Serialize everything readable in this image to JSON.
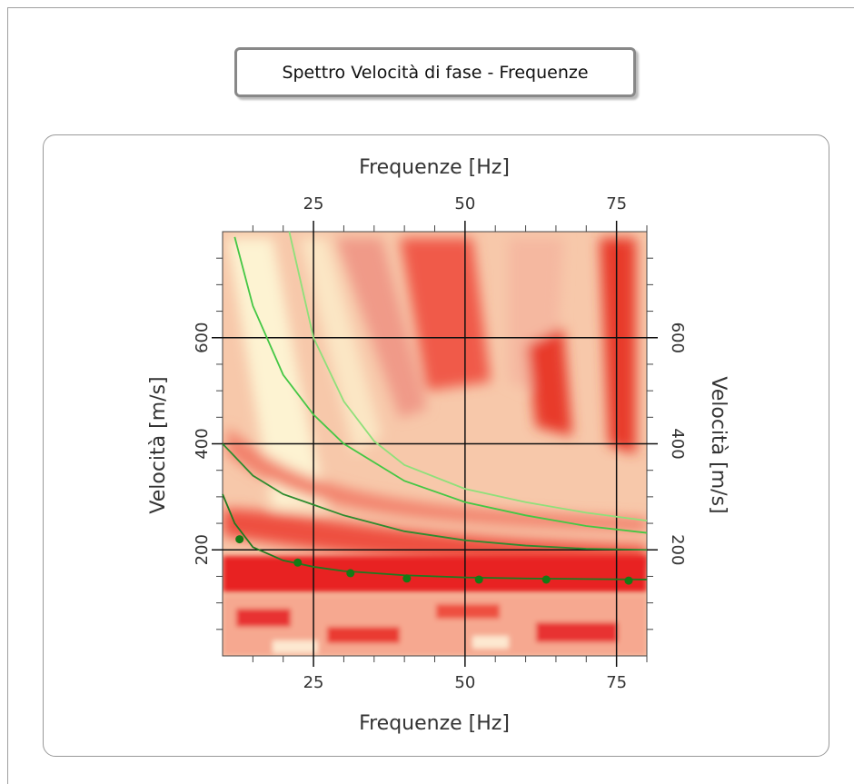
{
  "panel_title": "Spettro Velocità di fase - Frequenze",
  "chart_data": {
    "type": "line",
    "xlabel": "Frequenze [Hz]",
    "xlabel_top": "Frequenze [Hz]",
    "ylabel": "Velocità [m/s]",
    "ylabel_right": "Velocità [m/s]",
    "xlim": [
      10,
      80
    ],
    "ylim": [
      0,
      800
    ],
    "xticks": [
      25,
      50,
      75
    ],
    "yticks": [
      200,
      400,
      600
    ],
    "xminorticks": [
      15,
      20,
      30,
      35,
      40,
      45,
      55,
      60,
      65,
      70,
      80
    ],
    "yminorticks": [
      50,
      100,
      150,
      250,
      300,
      350,
      450,
      500,
      550,
      650,
      700,
      750
    ],
    "grid": true,
    "series": [
      {
        "color": "#1f7a1f",
        "x": [
          10,
          12,
          15,
          20,
          25,
          30,
          40,
          50,
          60,
          70,
          80
        ],
        "values": [
          305,
          250,
          205,
          180,
          168,
          160,
          152,
          148,
          146,
          145,
          144
        ]
      },
      {
        "color": "#2e8b2e",
        "x": [
          10,
          15,
          20,
          25,
          30,
          40,
          50,
          60,
          70,
          80
        ],
        "values": [
          400,
          340,
          305,
          285,
          265,
          235,
          218,
          208,
          202,
          200
        ]
      },
      {
        "color": "#44c744",
        "x": [
          12,
          15,
          20,
          25,
          30,
          40,
          50,
          60,
          70,
          80
        ],
        "values": [
          790,
          660,
          530,
          455,
          400,
          330,
          290,
          265,
          245,
          232
        ]
      },
      {
        "color": "#8fe07a",
        "x": [
          21,
          23,
          25,
          30,
          35,
          40,
          50,
          60,
          70,
          80
        ],
        "values": [
          800,
          700,
          600,
          480,
          405,
          360,
          315,
          290,
          270,
          255
        ]
      }
    ],
    "points": {
      "type": "scatter",
      "color": "#157a15",
      "x": [
        12.8,
        22.4,
        31.1,
        40.4,
        52.3,
        63.4,
        77
      ],
      "values": [
        220,
        176,
        156,
        146,
        144,
        144,
        142
      ]
    }
  }
}
